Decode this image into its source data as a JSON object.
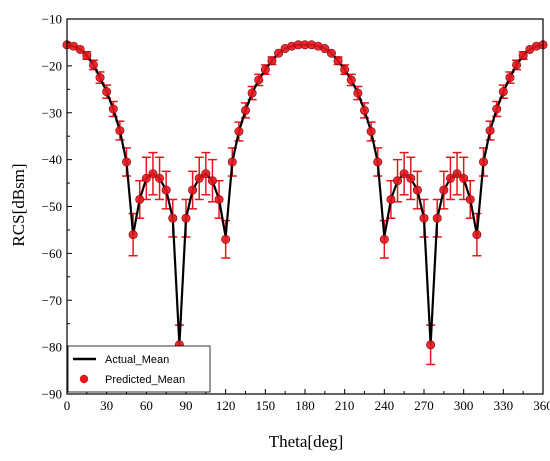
{
  "chart_data": {
    "type": "line",
    "title": "",
    "xlabel": "Theta[deg]",
    "ylabel": "RCS[dBsm]",
    "xlim": [
      0,
      360
    ],
    "ylim": [
      -90,
      -10
    ],
    "xticks": [
      0,
      30,
      60,
      90,
      120,
      150,
      180,
      210,
      240,
      270,
      300,
      330,
      360
    ],
    "yticks": [
      -10,
      -20,
      -30,
      -40,
      -50,
      -60,
      -70,
      -80,
      -90
    ],
    "xtick_labels": [
      "0",
      "30",
      "60",
      "90",
      "120",
      "150",
      "180",
      "210",
      "240",
      "270",
      "300",
      "330",
      "360"
    ],
    "ytick_labels": [
      "−10",
      "−20",
      "−30",
      "−40",
      "−50",
      "−60",
      "−70",
      "−80",
      "−90"
    ],
    "grid": false,
    "legend_position": "bottom-left",
    "x": [
      0,
      5,
      10,
      15,
      20,
      25,
      30,
      35,
      40,
      45,
      50,
      55,
      60,
      65,
      70,
      75,
      80,
      85,
      90,
      95,
      100,
      105,
      110,
      115,
      120,
      125,
      130,
      135,
      140,
      145,
      150,
      155,
      160,
      165,
      170,
      175,
      180,
      185,
      190,
      195,
      200,
      205,
      210,
      215,
      220,
      225,
      230,
      235,
      240,
      245,
      250,
      255,
      260,
      265,
      270,
      275,
      280,
      285,
      290,
      295,
      300,
      305,
      310,
      315,
      320,
      325,
      330,
      335,
      340,
      345,
      350,
      355,
      360
    ],
    "series": [
      {
        "name": "Actual_Mean",
        "style": "line",
        "color": "#000000",
        "values": [
          -15.5,
          -15.8,
          -16.5,
          -17.8,
          -19.8,
          -22.5,
          -25.5,
          -29.2,
          -33.8,
          -40.5,
          -56.0,
          -48.5,
          -44.0,
          -43.0,
          -44.0,
          -46.5,
          -52.5,
          -79.5,
          -52.5,
          -46.5,
          -44.0,
          -43.0,
          -44.5,
          -48.5,
          -56.5,
          -40.5,
          -34.0,
          -29.5,
          -25.8,
          -23.0,
          -20.8,
          -18.9,
          -17.3,
          -16.3,
          -15.8,
          -15.5,
          -15.5,
          -15.5,
          -15.8,
          -16.3,
          -17.3,
          -18.9,
          -20.8,
          -23.0,
          -25.8,
          -29.5,
          -34.0,
          -40.5,
          -56.5,
          -48.5,
          -44.5,
          -43.0,
          -44.0,
          -46.5,
          -52.5,
          -79.5,
          -52.5,
          -46.5,
          -44.0,
          -43.0,
          -44.0,
          -48.5,
          -56.0,
          -40.5,
          -33.8,
          -29.2,
          -25.5,
          -22.5,
          -19.8,
          -17.8,
          -16.5,
          -15.8,
          -15.5
        ]
      },
      {
        "name": "Predicted_Mean",
        "style": "scatter",
        "color": "#e8141c",
        "values": [
          -15.5,
          -15.8,
          -16.5,
          -17.8,
          -19.8,
          -22.5,
          -25.5,
          -29.2,
          -33.8,
          -40.5,
          -56.0,
          -48.5,
          -44.0,
          -43.0,
          -44.0,
          -46.5,
          -52.5,
          -79.5,
          -52.5,
          -46.5,
          -44.0,
          -43.0,
          -44.5,
          -48.5,
          -57.0,
          -40.5,
          -34.0,
          -29.5,
          -25.8,
          -23.0,
          -20.8,
          -18.9,
          -17.3,
          -16.3,
          -15.8,
          -15.5,
          -15.5,
          -15.5,
          -15.8,
          -16.3,
          -17.3,
          -18.9,
          -20.8,
          -23.0,
          -25.8,
          -29.5,
          -34.0,
          -40.5,
          -57.0,
          -48.5,
          -44.5,
          -43.0,
          -44.0,
          -46.5,
          -52.5,
          -79.5,
          -52.5,
          -46.5,
          -44.0,
          -43.0,
          -44.0,
          -48.5,
          -56.0,
          -40.5,
          -33.8,
          -29.2,
          -25.5,
          -22.5,
          -19.8,
          -17.8,
          -16.5,
          -15.8,
          -15.5
        ],
        "errors": [
          0.4,
          0.4,
          0.6,
          0.8,
          1.0,
          1.2,
          1.4,
          1.6,
          2.0,
          3.0,
          4.5,
          4.0,
          4.5,
          4.5,
          4.5,
          4.0,
          4.0,
          4.2,
          4.0,
          4.0,
          4.5,
          4.5,
          4.5,
          4.0,
          4.0,
          3.0,
          2.0,
          1.6,
          1.4,
          1.2,
          1.0,
          0.8,
          0.6,
          0.5,
          0.4,
          0.4,
          0.4,
          0.4,
          0.4,
          0.5,
          0.6,
          0.8,
          1.0,
          1.2,
          1.4,
          1.6,
          2.0,
          3.0,
          4.0,
          4.0,
          4.5,
          4.5,
          4.5,
          4.0,
          4.0,
          4.2,
          4.0,
          4.0,
          4.5,
          4.5,
          4.5,
          4.0,
          4.5,
          3.0,
          2.0,
          1.6,
          1.4,
          1.2,
          1.0,
          0.8,
          0.6,
          0.4,
          0.4
        ]
      }
    ]
  }
}
